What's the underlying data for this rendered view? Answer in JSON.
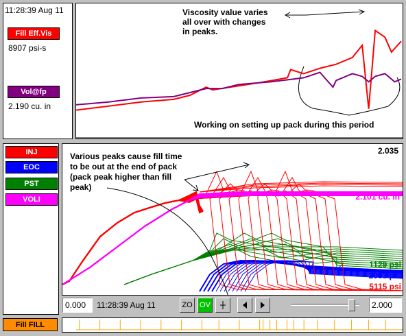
{
  "top_left": {
    "timestamp": "11:28:39 Aug 11",
    "channels": [
      {
        "label": "Fill Eff.Vis",
        "value": "8907 psi-s",
        "color": "#ff0000"
      },
      {
        "label": "Vol@fp",
        "value": "2.190 cu. in",
        "color": "#800080"
      }
    ]
  },
  "top_chart": {
    "annotation_1": [
      "Viscosity value varies",
      "all over with changes",
      "in peaks."
    ],
    "annotation_2": "Working on setting up pack during this period",
    "series": [
      {
        "color": "#ff0000",
        "points": [
          [
            0,
            0.79
          ],
          [
            0.1,
            0.76
          ],
          [
            0.2,
            0.73
          ],
          [
            0.3,
            0.71
          ],
          [
            0.35,
            0.68
          ],
          [
            0.4,
            0.62
          ],
          [
            0.42,
            0.64
          ],
          [
            0.5,
            0.61
          ],
          [
            0.58,
            0.58
          ],
          [
            0.65,
            0.55
          ],
          [
            0.66,
            0.49
          ],
          [
            0.7,
            0.52
          ],
          [
            0.75,
            0.48
          ],
          [
            0.8,
            0.45
          ],
          [
            0.85,
            0.4
          ],
          [
            0.88,
            0.31
          ],
          [
            0.9,
            0.78
          ],
          [
            0.92,
            0.2
          ],
          [
            0.95,
            0.25
          ],
          [
            0.97,
            0.36
          ],
          [
            1,
            0.28
          ]
        ]
      },
      {
        "color": "#800080",
        "points": [
          [
            0,
            0.75
          ],
          [
            0.1,
            0.73
          ],
          [
            0.2,
            0.7
          ],
          [
            0.3,
            0.69
          ],
          [
            0.35,
            0.66
          ],
          [
            0.4,
            0.63
          ],
          [
            0.45,
            0.63
          ],
          [
            0.5,
            0.6
          ],
          [
            0.6,
            0.58
          ],
          [
            0.67,
            0.56
          ],
          [
            0.7,
            0.55
          ],
          [
            0.75,
            0.51
          ],
          [
            0.79,
            0.62
          ],
          [
            0.8,
            0.57
          ],
          [
            0.85,
            0.52
          ],
          [
            0.88,
            0.54
          ],
          [
            0.9,
            0.58
          ],
          [
            0.92,
            0.54
          ],
          [
            0.95,
            0.52
          ],
          [
            0.98,
            0.58
          ],
          [
            1,
            0.56
          ]
        ]
      }
    ]
  },
  "legend": [
    {
      "label": "INJ",
      "color": "#ff0000"
    },
    {
      "label": "EOC",
      "color": "#0000ff"
    },
    {
      "label": "PST",
      "color": "#008000"
    },
    {
      "label": "VOLI",
      "color": "#ff00ff"
    }
  ],
  "main_chart": {
    "max_label": "2.035",
    "annotation": [
      "Various peaks cause fill time",
      "to be out at the end of pack",
      "(pack peak higher than fill",
      "peak)"
    ],
    "right_labels": [
      {
        "text": "2.101 cu. in",
        "color": "#ff00ff"
      },
      {
        "text": "1129 psi",
        "color": "#008000"
      },
      {
        "text": "2003 psi",
        "color": "#0000ff"
      },
      {
        "text": "5115 psi",
        "color": "#ff0000"
      }
    ]
  },
  "controls": {
    "start_value": "0.000",
    "timestamp": "11:28:39 Aug 11",
    "zo_label": "ZO",
    "ov_label": "OV",
    "end_value": "2.000"
  },
  "bottom": {
    "label": "Fill FILL",
    "marks": [
      0.05,
      0.11,
      0.17,
      0.23,
      0.29,
      0.35,
      0.41,
      0.46,
      0.52,
      0.58,
      0.59,
      0.61,
      0.63,
      0.66,
      0.68,
      0.71,
      0.75,
      0.8,
      0.85,
      0.9,
      0.95
    ]
  }
}
